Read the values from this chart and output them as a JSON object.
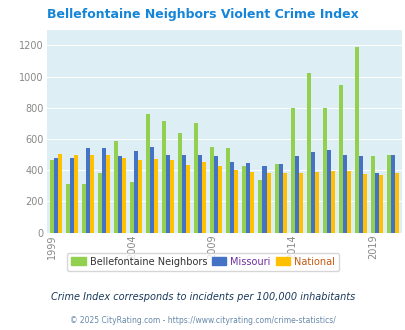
{
  "title": "Bellefontaine Neighbors Violent Crime Index",
  "years": [
    1999,
    2000,
    2001,
    2002,
    2003,
    2004,
    2005,
    2006,
    2007,
    2008,
    2009,
    2010,
    2011,
    2012,
    2013,
    2014,
    2015,
    2016,
    2017,
    2018,
    2019,
    2020
  ],
  "bellefontaine": [
    465,
    310,
    310,
    380,
    590,
    325,
    760,
    715,
    640,
    700,
    550,
    545,
    430,
    335,
    440,
    800,
    1020,
    800,
    945,
    1190,
    490,
    495
  ],
  "missouri": [
    480,
    475,
    540,
    540,
    490,
    520,
    550,
    500,
    500,
    495,
    490,
    450,
    445,
    430,
    440,
    490,
    515,
    530,
    500,
    490,
    380,
    495
  ],
  "national": [
    505,
    500,
    500,
    495,
    480,
    465,
    470,
    465,
    435,
    455,
    430,
    400,
    390,
    385,
    380,
    385,
    390,
    395,
    395,
    375,
    370,
    380
  ],
  "bellefontaine_color": "#92d050",
  "missouri_color": "#4472c4",
  "national_color": "#ffc000",
  "plot_bg": "#ddeef5",
  "title_color": "#1585d8",
  "legend_label_colors": [
    "#333333",
    "#7030a0",
    "#c55a11"
  ],
  "legend_labels": [
    "Bellefontaine Neighbors",
    "Missouri",
    "National"
  ],
  "subtitle": "Crime Index corresponds to incidents per 100,000 inhabitants",
  "footer": "© 2025 CityRating.com - https://www.cityrating.com/crime-statistics/",
  "tick_color": "#888888",
  "subtitle_color": "#1a3a5c",
  "footer_color": "#6688aa",
  "ylim": [
    0,
    1300
  ],
  "yticks": [
    0,
    200,
    400,
    600,
    800,
    1000,
    1200
  ],
  "tick_years": [
    1999,
    2004,
    2009,
    2014,
    2019
  ]
}
